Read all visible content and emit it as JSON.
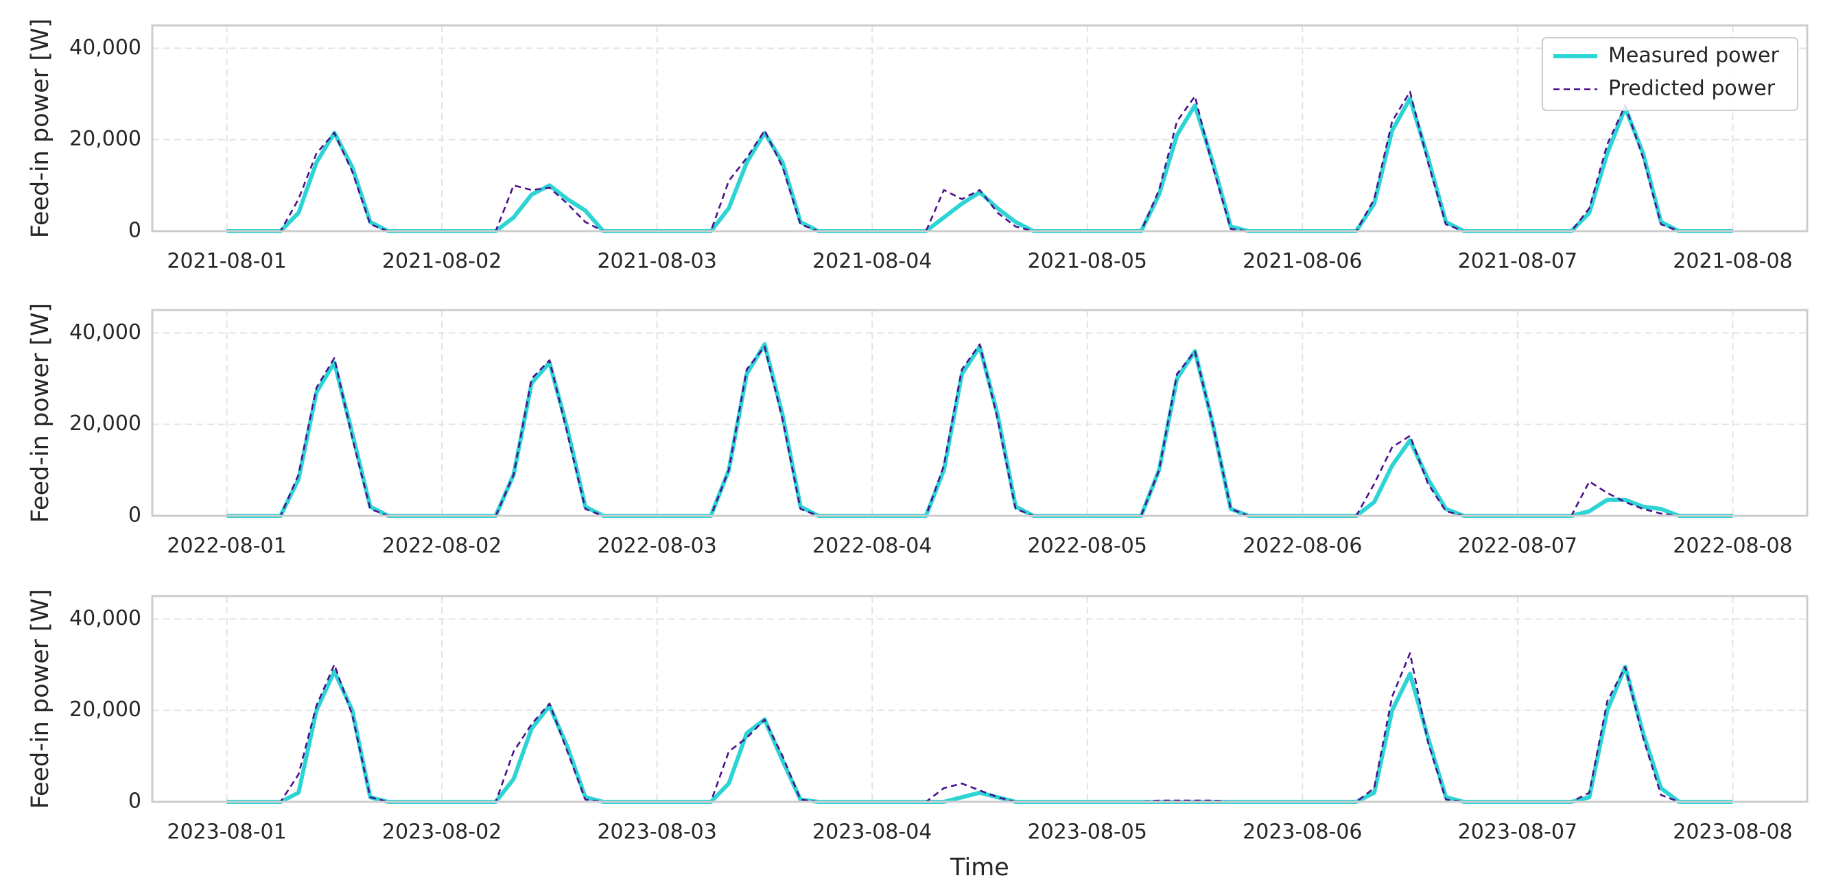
{
  "chart_data": [
    {
      "type": "line",
      "ylabel": "Feed-in power [W]",
      "xticks": [
        "2021-08-01",
        "2021-08-02",
        "2021-08-03",
        "2021-08-04",
        "2021-08-05",
        "2021-08-06",
        "2021-08-07",
        "2021-08-08"
      ],
      "ylim": [
        0,
        45000
      ],
      "yticks": [
        0,
        {
          "value": 20000,
          "label": "20,000"
        },
        {
          "value": 40000,
          "label": "40,000"
        }
      ],
      "grid": true,
      "legend": "upper right",
      "series": [
        {
          "name": "Measured power",
          "color": "#2dd4d4",
          "style": "solid",
          "values": [
            0,
            0,
            0,
            0,
            4000,
            15000,
            21500,
            14000,
            2000,
            0,
            0,
            0,
            0,
            0,
            0,
            0,
            3000,
            8000,
            10000,
            7000,
            4500,
            0,
            0,
            0,
            0,
            0,
            0,
            0,
            5000,
            15000,
            21500,
            15000,
            2000,
            0,
            0,
            0,
            0,
            0,
            0,
            0,
            3000,
            6000,
            8500,
            5000,
            2000,
            0,
            0,
            0,
            0,
            0,
            0,
            0,
            8000,
            21000,
            27500,
            15000,
            1000,
            0,
            0,
            0,
            0,
            0,
            0,
            0,
            6000,
            22000,
            29000,
            16000,
            2000,
            0,
            0,
            0,
            0,
            0,
            0,
            0,
            4000,
            17000,
            27000,
            17000,
            2000,
            0,
            0,
            0,
            0
          ]
        },
        {
          "name": "Predicted power",
          "color": "#4b0f8c",
          "style": "dashed",
          "values": [
            0,
            0,
            0,
            0,
            7000,
            17000,
            21500,
            13000,
            1500,
            0,
            0,
            0,
            0,
            0,
            0,
            0,
            10000,
            9000,
            9500,
            6000,
            2000,
            0,
            0,
            0,
            0,
            0,
            0,
            0,
            11000,
            16000,
            22000,
            14000,
            1500,
            0,
            0,
            0,
            0,
            0,
            0,
            0,
            9000,
            7000,
            9000,
            4000,
            1000,
            0,
            0,
            0,
            0,
            0,
            0,
            0,
            9000,
            24000,
            29500,
            14000,
            500,
            0,
            0,
            0,
            0,
            0,
            0,
            0,
            7000,
            24000,
            30500,
            15000,
            1500,
            0,
            0,
            0,
            0,
            0,
            0,
            0,
            5000,
            19000,
            27500,
            16000,
            1500,
            0,
            0,
            0,
            0
          ]
        }
      ]
    },
    {
      "type": "line",
      "ylabel": "Feed-in power [W]",
      "xticks": [
        "2022-08-01",
        "2022-08-02",
        "2022-08-03",
        "2022-08-04",
        "2022-08-05",
        "2022-08-06",
        "2022-08-07",
        "2022-08-08"
      ],
      "ylim": [
        0,
        45000
      ],
      "yticks": [
        0,
        {
          "value": 20000,
          "label": "20,000"
        },
        {
          "value": 40000,
          "label": "40,000"
        }
      ],
      "grid": true,
      "series": [
        {
          "name": "Measured power",
          "color": "#2dd4d4",
          "style": "solid",
          "values": [
            0,
            0,
            0,
            0,
            8000,
            27000,
            33500,
            18000,
            2000,
            0,
            0,
            0,
            0,
            0,
            0,
            0,
            9000,
            29000,
            33500,
            19000,
            2000,
            0,
            0,
            0,
            0,
            0,
            0,
            0,
            10000,
            31000,
            37500,
            22000,
            2000,
            0,
            0,
            0,
            0,
            0,
            0,
            0,
            10000,
            31000,
            37000,
            22000,
            2000,
            0,
            0,
            0,
            0,
            0,
            0,
            0,
            10000,
            30000,
            36000,
            20000,
            1500,
            0,
            0,
            0,
            0,
            0,
            0,
            0,
            3000,
            11000,
            16500,
            8000,
            1500,
            0,
            0,
            0,
            0,
            0,
            0,
            0,
            1000,
            3500,
            3500,
            2000,
            1500,
            0,
            0,
            0,
            0
          ]
        },
        {
          "name": "Predicted power",
          "color": "#4b0f8c",
          "style": "dashed",
          "values": [
            0,
            0,
            0,
            0,
            9000,
            28000,
            34500,
            17000,
            1500,
            0,
            0,
            0,
            0,
            0,
            0,
            0,
            9000,
            30000,
            34000,
            18000,
            1500,
            0,
            0,
            0,
            0,
            0,
            0,
            0,
            10000,
            32000,
            37000,
            21000,
            1500,
            0,
            0,
            0,
            0,
            0,
            0,
            0,
            11000,
            32000,
            37500,
            21000,
            1500,
            0,
            0,
            0,
            0,
            0,
            0,
            0,
            10000,
            31000,
            36000,
            20000,
            1500,
            0,
            0,
            0,
            0,
            0,
            0,
            0,
            7000,
            15000,
            17500,
            7000,
            1000,
            0,
            0,
            0,
            0,
            0,
            0,
            0,
            7500,
            5000,
            3000,
            1500,
            500,
            0,
            0,
            0,
            0
          ]
        }
      ]
    },
    {
      "type": "line",
      "ylabel": "Feed-in power [W]",
      "xlabel": "Time",
      "xticks": [
        "2023-08-01",
        "2023-08-02",
        "2023-08-03",
        "2023-08-04",
        "2023-08-05",
        "2023-08-06",
        "2023-08-07",
        "2023-08-08"
      ],
      "ylim": [
        0,
        45000
      ],
      "yticks": [
        0,
        {
          "value": 20000,
          "label": "20,000"
        },
        {
          "value": 40000,
          "label": "40,000"
        }
      ],
      "grid": true,
      "series": [
        {
          "name": "Measured power",
          "color": "#2dd4d4",
          "style": "solid",
          "values": [
            0,
            0,
            0,
            0,
            2000,
            20000,
            28500,
            20000,
            1000,
            0,
            0,
            0,
            0,
            0,
            0,
            0,
            5000,
            16000,
            21000,
            12000,
            1000,
            0,
            0,
            0,
            0,
            0,
            0,
            0,
            4000,
            15000,
            18000,
            9000,
            500,
            0,
            0,
            0,
            0,
            0,
            0,
            0,
            0,
            1000,
            2000,
            1000,
            0,
            0,
            0,
            0,
            0,
            0,
            0,
            0,
            0,
            0,
            0,
            0,
            0,
            0,
            0,
            0,
            0,
            0,
            0,
            0,
            2000,
            20000,
            28000,
            14000,
            1000,
            0,
            0,
            0,
            0,
            0,
            0,
            0,
            1000,
            20000,
            29500,
            15000,
            3000,
            0,
            0,
            0,
            0
          ]
        },
        {
          "name": "Predicted power",
          "color": "#4b0f8c",
          "style": "dashed",
          "values": [
            0,
            0,
            0,
            0,
            6000,
            21000,
            30000,
            19000,
            1000,
            0,
            0,
            0,
            0,
            0,
            0,
            0,
            11000,
            17000,
            21500,
            11000,
            500,
            0,
            0,
            0,
            0,
            0,
            0,
            0,
            11000,
            14000,
            18000,
            10000,
            500,
            0,
            0,
            0,
            0,
            0,
            0,
            0,
            3000,
            4000,
            2500,
            1000,
            0,
            0,
            0,
            0,
            0,
            0,
            0,
            0,
            300,
            300,
            300,
            300,
            0,
            0,
            0,
            0,
            0,
            0,
            0,
            0,
            3000,
            23000,
            32500,
            13000,
            500,
            0,
            0,
            0,
            0,
            0,
            0,
            0,
            2000,
            22000,
            29500,
            14000,
            1500,
            0,
            0,
            0,
            0
          ]
        }
      ]
    }
  ]
}
